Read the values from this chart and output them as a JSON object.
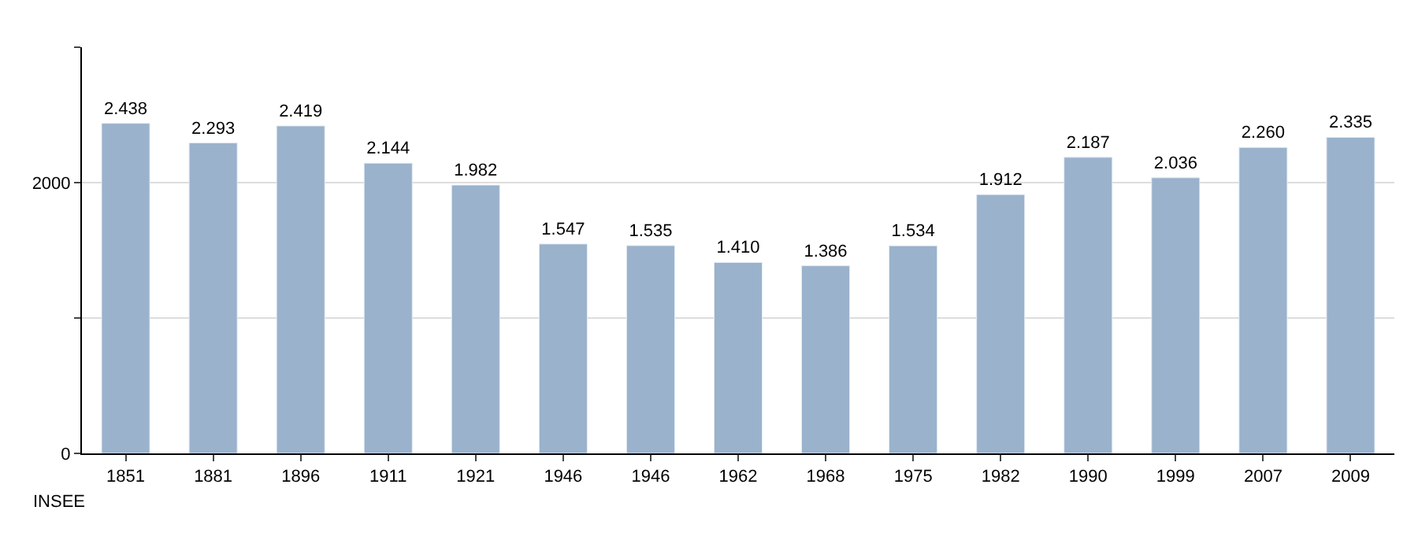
{
  "chart_data": {
    "type": "bar",
    "categories": [
      "1851",
      "1881",
      "1896",
      "1911",
      "1921",
      "1946",
      "1946",
      "1962",
      "1968",
      "1975",
      "1982",
      "1990",
      "1999",
      "2007",
      "2009"
    ],
    "values": [
      2438,
      2293,
      2419,
      2144,
      1982,
      1547,
      1535,
      1410,
      1386,
      1534,
      1912,
      2187,
      2036,
      2260,
      2335
    ],
    "value_labels": [
      "2.438",
      "2.293",
      "2.419",
      "2.144",
      "1.982",
      "1.547",
      "1.535",
      "1.410",
      "1.386",
      "1.534",
      "1.912",
      "2.187",
      "2.036",
      "2.260",
      "2.335"
    ],
    "color": "#9ab2cb",
    "ylim": [
      0,
      3000
    ],
    "yticks": [
      0,
      {
        "value": 1000,
        "label": null
      },
      2000,
      {
        "value": 3000,
        "label": null
      }
    ],
    "grid": "y",
    "annotations": [
      "INSEE"
    ]
  }
}
